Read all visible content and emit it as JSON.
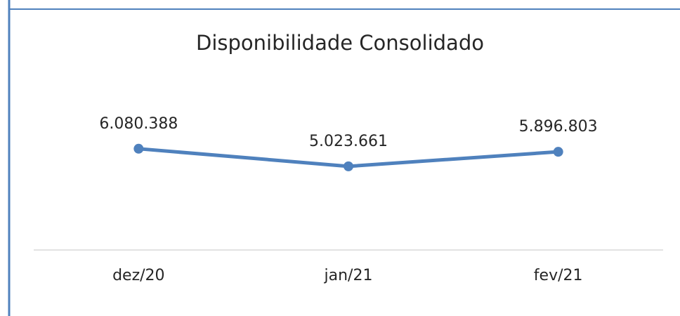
{
  "chart_data": {
    "type": "line",
    "title": "Disponibilidade Consolidado",
    "categories": [
      "dez/20",
      "jan/21",
      "fev/21"
    ],
    "series": [
      {
        "name": null,
        "color": "#4f81bd",
        "values": [
          6080388,
          5023661,
          5896803
        ],
        "value_labels": [
          "6.080.388",
          "5.023.661",
          "5.896.803"
        ]
      }
    ],
    "ylim": [
      0,
      7000000
    ]
  }
}
